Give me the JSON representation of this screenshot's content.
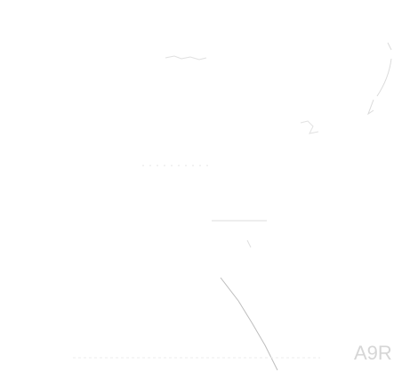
{
  "texts": {
    "corner_label": "A9R"
  },
  "colors": {
    "background": "#ffffff",
    "faint_mark": "#cfcfcf",
    "faint_text": "#d6d6d6"
  }
}
